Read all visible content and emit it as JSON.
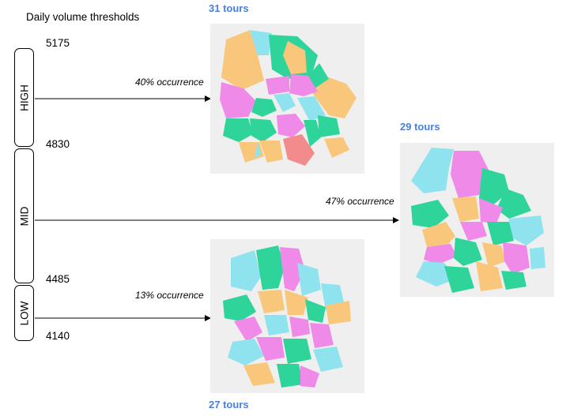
{
  "title": "Daily volume thresholds",
  "thresholds": [
    "5175",
    "4830",
    "4485",
    "4140"
  ],
  "bands": [
    {
      "label": "HIGH",
      "occurrence": "40% occurrence",
      "tours": "31 tours"
    },
    {
      "label": "MID",
      "occurrence": "47% occurrence",
      "tours": "29 tours"
    },
    {
      "label": "LOW",
      "occurrence": "13% occurrence",
      "tours": "27 tours"
    }
  ],
  "colors": {
    "tours_text": "#4a7fe0",
    "zone_orange": "#f9c77c",
    "zone_green": "#2fd49b",
    "zone_pink": "#ef8ae8",
    "zone_cyan": "#8ee3ef",
    "zone_red": "#f28b8b",
    "map_bg": "#efefef"
  }
}
